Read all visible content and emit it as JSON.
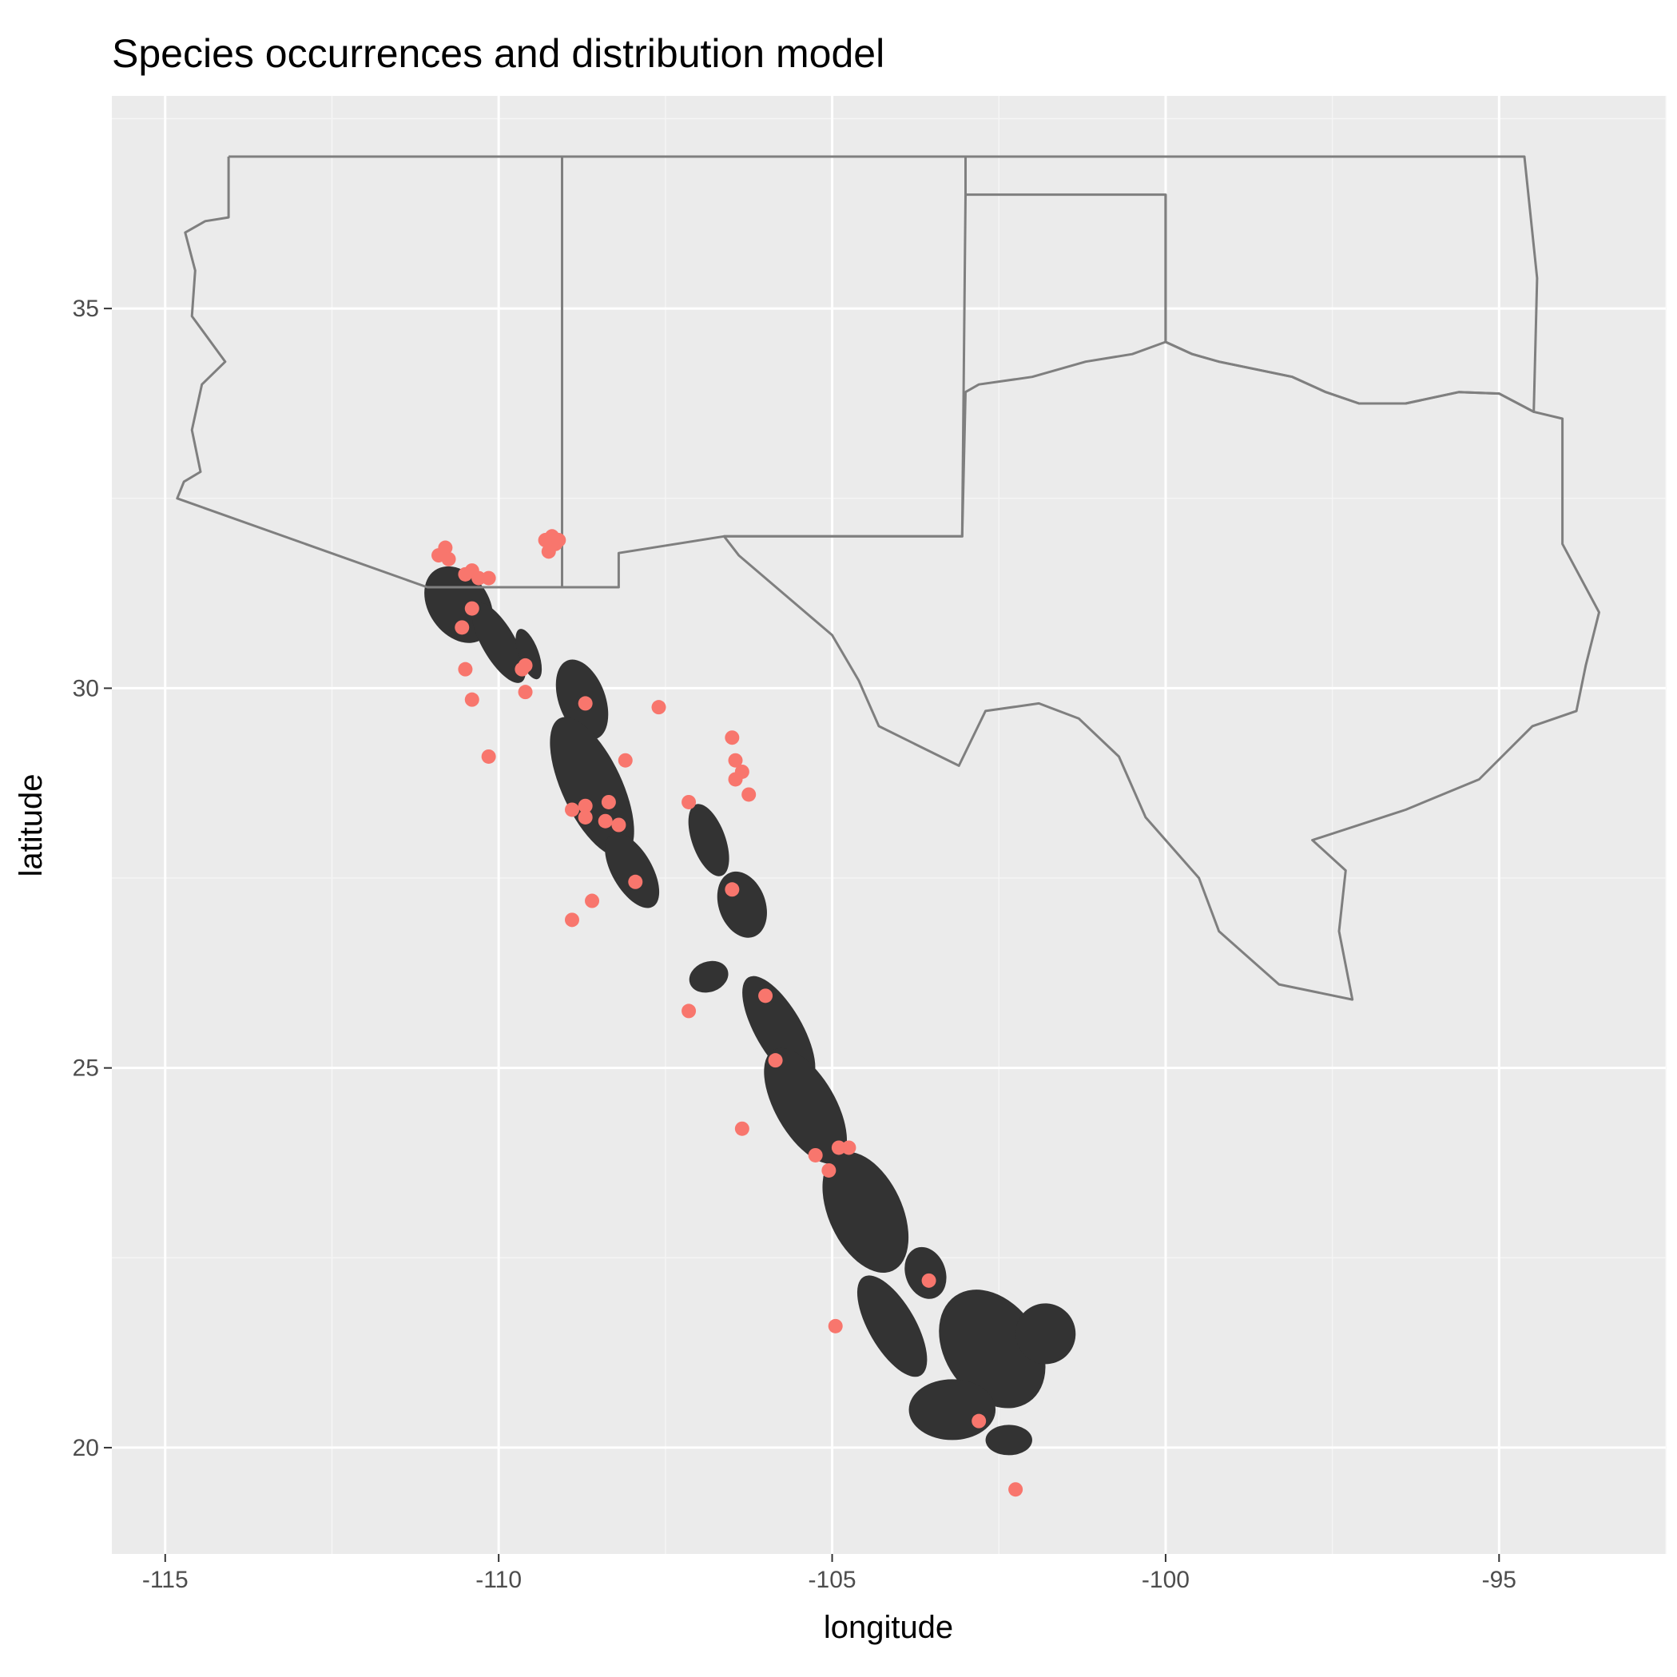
{
  "title": "Species occurrences and distribution model",
  "colors": {
    "panel_background": "#EBEBEB",
    "grid_major": "#FFFFFF",
    "grid_minor": "#F5F5F5",
    "state_border": "#7F7F7F",
    "model_raster": "#333333",
    "occurrence_points": "#F8766D",
    "tick_text": "#4D4D4D"
  },
  "chart_data": {
    "type": "scatter",
    "title": "Species occurrences and distribution model",
    "xlabel": "longitude",
    "ylabel": "latitude",
    "xlim": [
      -115.8,
      -92.5
    ],
    "ylim": [
      18.6,
      37.8
    ],
    "x_ticks": [
      {
        "value": -115,
        "label": "-115"
      },
      {
        "value": -110,
        "label": "-110"
      },
      {
        "value": -105,
        "label": "-105"
      },
      {
        "value": -100,
        "label": "-100"
      },
      {
        "value": -95,
        "label": "-95"
      }
    ],
    "y_ticks": [
      {
        "value": 20,
        "label": "20"
      },
      {
        "value": 25,
        "label": "25"
      },
      {
        "value": 30,
        "label": "30"
      },
      {
        "value": 35,
        "label": "35"
      }
    ],
    "grid": true,
    "legend": "none",
    "series": [
      {
        "values_xy": [
          [
            -110.9,
            31.75
          ],
          [
            -110.8,
            31.85
          ],
          [
            -110.75,
            31.7
          ],
          [
            -110.5,
            31.5
          ],
          [
            -110.4,
            31.55
          ],
          [
            -110.3,
            31.45
          ],
          [
            -110.15,
            31.45
          ],
          [
            -109.3,
            31.95
          ],
          [
            -109.2,
            32.0
          ],
          [
            -109.15,
            31.9
          ],
          [
            -109.25,
            31.8
          ],
          [
            -109.1,
            31.95
          ],
          [
            -110.4,
            31.05
          ],
          [
            -110.55,
            30.8
          ],
          [
            -110.5,
            30.25
          ],
          [
            -110.4,
            29.85
          ],
          [
            -110.15,
            29.1
          ],
          [
            -109.65,
            30.25
          ],
          [
            -109.6,
            30.3
          ],
          [
            -109.6,
            29.95
          ],
          [
            -108.7,
            29.8
          ],
          [
            -107.6,
            29.75
          ],
          [
            -108.1,
            29.05
          ],
          [
            -108.9,
            28.4
          ],
          [
            -108.7,
            28.45
          ],
          [
            -108.7,
            28.3
          ],
          [
            -108.35,
            28.5
          ],
          [
            -108.4,
            28.25
          ],
          [
            -108.2,
            28.2
          ],
          [
            -107.95,
            27.45
          ],
          [
            -108.6,
            27.2
          ],
          [
            -108.9,
            26.95
          ],
          [
            -107.15,
            28.5
          ],
          [
            -106.5,
            29.35
          ],
          [
            -106.45,
            29.05
          ],
          [
            -106.35,
            28.9
          ],
          [
            -106.45,
            28.8
          ],
          [
            -106.25,
            28.6
          ],
          [
            -106.5,
            27.35
          ],
          [
            -107.15,
            25.75
          ],
          [
            -106.0,
            25.95
          ],
          [
            -105.85,
            25.1
          ],
          [
            -106.35,
            24.2
          ],
          [
            -105.25,
            23.85
          ],
          [
            -105.05,
            23.65
          ],
          [
            -104.9,
            23.95
          ],
          [
            -104.75,
            23.95
          ],
          [
            -103.55,
            22.2
          ],
          [
            -104.95,
            21.6
          ],
          [
            -102.8,
            20.35
          ],
          [
            -102.25,
            19.45
          ]
        ]
      }
    ],
    "distribution_model_blobs": [
      {
        "lon": -110.6,
        "lat": 31.1,
        "rx": 0.45,
        "ry": 0.55,
        "rot": -35
      },
      {
        "lon": -110.0,
        "lat": 30.6,
        "rx": 0.25,
        "ry": 0.6,
        "rot": -30
      },
      {
        "lon": -109.55,
        "lat": 30.45,
        "rx": 0.15,
        "ry": 0.35,
        "rot": -20
      },
      {
        "lon": -108.75,
        "lat": 29.85,
        "rx": 0.35,
        "ry": 0.55,
        "rot": -20
      },
      {
        "lon": -108.6,
        "lat": 28.7,
        "rx": 0.45,
        "ry": 1.0,
        "rot": -25
      },
      {
        "lon": -108.0,
        "lat": 27.6,
        "rx": 0.3,
        "ry": 0.55,
        "rot": -30
      },
      {
        "lon": -106.85,
        "lat": 28.0,
        "rx": 0.25,
        "ry": 0.5,
        "rot": -20
      },
      {
        "lon": -106.35,
        "lat": 27.15,
        "rx": 0.35,
        "ry": 0.45,
        "rot": -20
      },
      {
        "lon": -106.85,
        "lat": 26.2,
        "rx": 0.3,
        "ry": 0.2,
        "rot": -20
      },
      {
        "lon": -105.8,
        "lat": 25.5,
        "rx": 0.35,
        "ry": 0.8,
        "rot": -30
      },
      {
        "lon": -105.4,
        "lat": 24.5,
        "rx": 0.45,
        "ry": 0.85,
        "rot": -30
      },
      {
        "lon": -104.5,
        "lat": 23.1,
        "rx": 0.55,
        "ry": 0.85,
        "rot": -25
      },
      {
        "lon": -103.6,
        "lat": 22.3,
        "rx": 0.3,
        "ry": 0.35,
        "rot": -20
      },
      {
        "lon": -104.1,
        "lat": 21.6,
        "rx": 0.35,
        "ry": 0.75,
        "rot": -30
      },
      {
        "lon": -102.6,
        "lat": 21.3,
        "rx": 0.7,
        "ry": 0.85,
        "rot": -35
      },
      {
        "lon": -101.8,
        "lat": 21.5,
        "rx": 0.45,
        "ry": 0.4,
        "rot": -20
      },
      {
        "lon": -103.2,
        "lat": 20.5,
        "rx": 0.65,
        "ry": 0.4,
        "rot": 0
      },
      {
        "lon": -102.35,
        "lat": 20.1,
        "rx": 0.35,
        "ry": 0.2,
        "rot": 0
      }
    ],
    "state_boundaries": [
      {
        "name": "Arizona",
        "lonlat": [
          [
            -114.05,
            37.0
          ],
          [
            -109.05,
            37.0
          ],
          [
            -109.05,
            31.33
          ],
          [
            -111.07,
            31.33
          ],
          [
            -114.82,
            32.5
          ],
          [
            -114.72,
            32.72
          ],
          [
            -114.47,
            32.85
          ],
          [
            -114.6,
            33.4
          ],
          [
            -114.45,
            34.0
          ],
          [
            -114.1,
            34.3
          ],
          [
            -114.6,
            34.9
          ],
          [
            -114.55,
            35.5
          ],
          [
            -114.7,
            36.0
          ],
          [
            -114.4,
            36.15
          ],
          [
            -114.05,
            36.2
          ],
          [
            -114.05,
            37.0
          ]
        ]
      },
      {
        "name": "New Mexico",
        "lonlat": [
          [
            -109.05,
            37.0
          ],
          [
            -103.0,
            37.0
          ],
          [
            -103.0,
            36.5
          ],
          [
            -103.05,
            32.0
          ],
          [
            -106.62,
            32.0
          ],
          [
            -108.2,
            31.78
          ],
          [
            -108.2,
            31.33
          ],
          [
            -109.05,
            31.33
          ],
          [
            -109.05,
            37.0
          ]
        ]
      },
      {
        "name": "Oklahoma",
        "lonlat": [
          [
            -103.0,
            37.0
          ],
          [
            -94.62,
            37.0
          ],
          [
            -94.43,
            35.4
          ],
          [
            -94.48,
            33.64
          ],
          [
            -95.0,
            33.88
          ],
          [
            -95.6,
            33.9
          ],
          [
            -96.4,
            33.75
          ],
          [
            -97.1,
            33.75
          ],
          [
            -97.6,
            33.9
          ],
          [
            -98.1,
            34.1
          ],
          [
            -99.2,
            34.3
          ],
          [
            -99.6,
            34.4
          ],
          [
            -100.0,
            34.56
          ],
          [
            -100.0,
            36.5
          ],
          [
            -103.0,
            36.5
          ],
          [
            -103.0,
            37.0
          ]
        ]
      },
      {
        "name": "Texas",
        "lonlat": [
          [
            -100.0,
            36.5
          ],
          [
            -100.0,
            34.56
          ],
          [
            -100.5,
            34.4
          ],
          [
            -101.2,
            34.3
          ],
          [
            -102.0,
            34.1
          ],
          [
            -102.8,
            34.0
          ],
          [
            -103.0,
            33.9
          ],
          [
            -103.05,
            32.0
          ],
          [
            -106.62,
            32.0
          ],
          [
            -106.4,
            31.75
          ],
          [
            -105.0,
            30.7
          ],
          [
            -104.6,
            30.1
          ],
          [
            -104.3,
            29.5
          ],
          [
            -103.1,
            28.98
          ],
          [
            -102.7,
            29.7
          ],
          [
            -101.9,
            29.8
          ],
          [
            -101.3,
            29.6
          ],
          [
            -100.7,
            29.1
          ],
          [
            -100.3,
            28.3
          ],
          [
            -99.5,
            27.5
          ],
          [
            -99.2,
            26.8
          ],
          [
            -98.3,
            26.1
          ],
          [
            -97.2,
            25.9
          ],
          [
            -97.4,
            26.8
          ],
          [
            -97.3,
            27.6
          ],
          [
            -97.8,
            28.0
          ],
          [
            -96.4,
            28.4
          ],
          [
            -95.3,
            28.8
          ],
          [
            -94.5,
            29.5
          ],
          [
            -93.84,
            29.7
          ],
          [
            -93.7,
            30.3
          ],
          [
            -93.5,
            31.0
          ],
          [
            -94.05,
            31.9
          ],
          [
            -94.05,
            33.55
          ],
          [
            -94.48,
            33.64
          ],
          [
            -95.0,
            33.88
          ],
          [
            -95.6,
            33.9
          ],
          [
            -96.4,
            33.75
          ],
          [
            -97.1,
            33.75
          ],
          [
            -97.6,
            33.9
          ],
          [
            -98.1,
            34.1
          ],
          [
            -99.2,
            34.3
          ],
          [
            -99.6,
            34.4
          ],
          [
            -100.0,
            34.56
          ]
        ]
      }
    ]
  }
}
